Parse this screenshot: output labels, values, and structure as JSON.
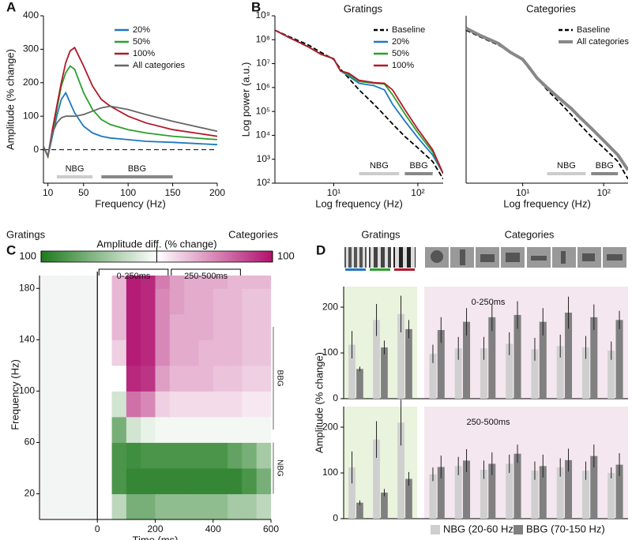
{
  "chart_data": [
    {
      "type": "line",
      "panel": "A",
      "xlabel": "Frequency (Hz)",
      "ylabel": "Amplitude (% change)",
      "x": [
        5,
        10,
        15,
        20,
        25,
        30,
        35,
        40,
        50,
        60,
        70,
        80,
        100,
        120,
        150,
        200
      ],
      "xlim": [
        5,
        200
      ],
      "xticks": [
        10,
        50,
        100,
        150,
        200
      ],
      "ylim": [
        -100,
        400
      ],
      "yticks": [
        0,
        100,
        200,
        300,
        400
      ],
      "reference_line": 0,
      "legend_position": "upper right",
      "series": [
        {
          "name": "20%",
          "color": "#1f78c1",
          "values": [
            10,
            -20,
            40,
            100,
            150,
            170,
            140,
            110,
            70,
            50,
            40,
            35,
            30,
            25,
            22,
            15
          ]
        },
        {
          "name": "50%",
          "color": "#2ca02c",
          "values": [
            10,
            -20,
            50,
            120,
            190,
            230,
            250,
            240,
            170,
            120,
            90,
            75,
            60,
            50,
            40,
            30
          ]
        },
        {
          "name": "100%",
          "color": "#b2182b",
          "values": [
            10,
            -20,
            60,
            130,
            200,
            260,
            295,
            305,
            250,
            190,
            150,
            130,
            100,
            80,
            60,
            40
          ]
        },
        {
          "name": "All categories",
          "color": "#666666",
          "values": [
            10,
            -20,
            50,
            80,
            95,
            100,
            100,
            100,
            105,
            115,
            125,
            130,
            120,
            105,
            85,
            55
          ]
        }
      ],
      "bands": [
        {
          "label": "NBG",
          "range": [
            20,
            60
          ],
          "color": "#cccccc"
        },
        {
          "label": "BBG",
          "range": [
            70,
            150
          ],
          "color": "#888888"
        }
      ]
    },
    {
      "type": "line",
      "panel": "B",
      "title": "Gratings",
      "xlabel": "Log frequency (Hz)",
      "ylabel": "Log power (a.u.)",
      "xlog": true,
      "ylog": true,
      "x": [
        2,
        3,
        5,
        7,
        10,
        12,
        15,
        20,
        30,
        40,
        50,
        70,
        100,
        150,
        200
      ],
      "xlim": [
        2,
        200
      ],
      "xticks": [
        {
          "value": 10,
          "label": "10¹"
        },
        {
          "value": 100,
          "label": "10²"
        }
      ],
      "ylim": [
        100,
        1000000000
      ],
      "yticks": [
        {
          "value": 100,
          "label": "10²"
        },
        {
          "value": 1000,
          "label": "10³"
        },
        {
          "value": 10000,
          "label": "10⁴"
        },
        {
          "value": 100000,
          "label": "10⁵"
        },
        {
          "value": 1000000,
          "label": "10⁶"
        },
        {
          "value": 10000000,
          "label": "10⁷"
        },
        {
          "value": 100000000,
          "label": "10⁸"
        },
        {
          "value": 1000000000,
          "label": "10⁹"
        }
      ],
      "legend_position": "upper right",
      "series": [
        {
          "name": "Baseline",
          "color": "#000000",
          "dash": true,
          "values": [
            250000000,
            130000000,
            60000000,
            30000000,
            15000000,
            6000000,
            2500000,
            800000,
            200000,
            70000,
            30000,
            9000,
            3000,
            800,
            150
          ]
        },
        {
          "name": "20%",
          "color": "#1f78c1",
          "values": [
            250000000,
            120000000,
            50000000,
            25000000,
            16000000,
            5000000,
            3000000,
            1500000,
            1200000,
            800000,
            200000,
            40000,
            8000,
            1500,
            250
          ]
        },
        {
          "name": "50%",
          "color": "#2ca02c",
          "values": [
            250000000,
            120000000,
            50000000,
            25000000,
            16000000,
            5000000,
            3500000,
            1800000,
            1500000,
            1400000,
            500000,
            80000,
            13000,
            2000,
            250
          ]
        },
        {
          "name": "100%",
          "color": "#b2182b",
          "values": [
            250000000,
            120000000,
            50000000,
            25000000,
            16000000,
            5000000,
            4000000,
            2000000,
            1600000,
            1500000,
            800000,
            120000,
            18000,
            2500,
            250
          ]
        }
      ],
      "bands": [
        {
          "label": "NBG",
          "range": [
            20,
            60
          ],
          "color": "#cccccc"
        },
        {
          "label": "BBG",
          "range": [
            70,
            150
          ],
          "color": "#888888"
        }
      ]
    },
    {
      "type": "line",
      "title": "Categories",
      "xlabel": "Log frequency (Hz)",
      "xlog": true,
      "ylog": true,
      "x": [
        2,
        3,
        5,
        7,
        10,
        12,
        15,
        20,
        30,
        40,
        50,
        70,
        100,
        150,
        200
      ],
      "xlim": [
        2,
        200
      ],
      "xticks": [
        {
          "value": 10,
          "label": "10¹"
        },
        {
          "value": 100,
          "label": "10²"
        }
      ],
      "ylim": [
        100,
        1000000000
      ],
      "legend_position": "upper right",
      "series": [
        {
          "name": "Baseline",
          "color": "#000000",
          "dash": true,
          "values": [
            250000000,
            130000000,
            60000000,
            30000000,
            15000000,
            6000000,
            2500000,
            800000,
            200000,
            70000,
            30000,
            9000,
            3000,
            800,
            150
          ]
        },
        {
          "name": "All categories",
          "color": "#888888",
          "width": 4,
          "values": [
            300000000,
            150000000,
            70000000,
            30000000,
            15000000,
            7000000,
            2500000,
            1000000,
            300000,
            130000,
            60000,
            20000,
            6000,
            1500,
            350
          ]
        }
      ],
      "bands": [
        {
          "label": "NBG",
          "range": [
            20,
            60
          ],
          "color": "#cccccc"
        },
        {
          "label": "BBG",
          "range": [
            70,
            150
          ],
          "color": "#888888"
        }
      ]
    },
    {
      "type": "heatmap",
      "panel": "C",
      "xlabel": "Time (ms)",
      "ylabel": "Frequency (Hz)",
      "colorbar_label": "Amplitude diff. (% change)",
      "colorbar_ends": [
        "Gratings",
        "Categories"
      ],
      "colorbar_lim": [
        -100,
        100
      ],
      "colorbar_ticks": [
        {
          "value": -100,
          "label": "100"
        },
        {
          "value": 100,
          "label": "100"
        }
      ],
      "colors": [
        "#1e7a1e",
        "#ffffff",
        "#b0106e"
      ],
      "xlim": [
        -200,
        600
      ],
      "xticks": [
        0,
        200,
        400,
        600
      ],
      "ylim": [
        0,
        190
      ],
      "yticks": [
        20,
        60,
        100,
        140,
        180
      ],
      "x": [
        0,
        50,
        100,
        150,
        200,
        250,
        300,
        350,
        400,
        450,
        500,
        550
      ],
      "y": [
        10,
        30,
        50,
        70,
        90,
        110,
        130,
        150,
        170,
        190
      ],
      "values": [
        [
          0,
          -30,
          -60,
          -60,
          -50,
          -50,
          -50,
          -50,
          -50,
          -40,
          -40,
          -30
        ],
        [
          0,
          -80,
          -90,
          -90,
          -90,
          -90,
          -90,
          -90,
          -90,
          -90,
          -80,
          -60
        ],
        [
          0,
          -80,
          -85,
          -80,
          -80,
          -80,
          -80,
          -80,
          -80,
          -70,
          -60,
          -40
        ],
        [
          0,
          -60,
          -20,
          -10,
          -5,
          -5,
          -5,
          -5,
          -5,
          -5,
          -5,
          -5
        ],
        [
          0,
          -20,
          60,
          50,
          20,
          15,
          15,
          15,
          15,
          15,
          10,
          10
        ],
        [
          0,
          0,
          90,
          85,
          40,
          30,
          30,
          30,
          25,
          25,
          20,
          20
        ],
        [
          0,
          20,
          95,
          90,
          50,
          35,
          35,
          30,
          30,
          30,
          25,
          25
        ],
        [
          0,
          30,
          95,
          90,
          50,
          35,
          35,
          35,
          30,
          30,
          25,
          25
        ],
        [
          0,
          30,
          95,
          90,
          50,
          40,
          35,
          35,
          30,
          30,
          25,
          25
        ],
        [
          0,
          30,
          95,
          90,
          55,
          40,
          35,
          35,
          35,
          30,
          30,
          30
        ]
      ],
      "windows": [
        {
          "label": "0-250ms",
          "range": [
            0,
            250
          ]
        },
        {
          "label": "250-500ms",
          "range": [
            250,
            500
          ]
        }
      ],
      "bands": [
        {
          "label": "NBG",
          "range": [
            20,
            60
          ]
        },
        {
          "label": "BBG",
          "range": [
            70,
            150
          ]
        }
      ]
    },
    {
      "type": "bar",
      "panel": "D",
      "ylabel": "Amplitude (% change)",
      "group_labels": [
        "Gratings",
        "Categories"
      ],
      "categories": [
        null,
        null,
        null,
        null,
        null,
        null,
        null,
        null,
        null,
        null,
        null
      ],
      "ylim": [
        0,
        245
      ],
      "yticks": [
        0,
        100,
        200
      ],
      "legend": [
        {
          "name": "NBG (20-60 Hz)",
          "color": "#cfcfcf"
        },
        {
          "name": "BBG (70-150 Hz)",
          "color": "#808080"
        }
      ],
      "panels": [
        {
          "title": "0-250ms",
          "series": [
            {
              "values": [
                118,
                172,
                185,
                98,
                110,
                110,
                120,
                108,
                115,
                112,
                105
              ],
              "errors": [
                30,
                35,
                40,
                20,
                25,
                25,
                25,
                25,
                25,
                25,
                20
              ]
            },
            {
              "values": [
                65,
                112,
                152,
                150,
                168,
                178,
                183,
                168,
                188,
                178,
                172
              ],
              "errors": [
                5,
                15,
                20,
                28,
                30,
                30,
                30,
                30,
                35,
                28,
                20
              ]
            }
          ]
        },
        {
          "title": "250-500ms",
          "series": [
            {
              "values": [
                112,
                173,
                210,
                97,
                115,
                107,
                120,
                105,
                112,
                105,
                100
              ],
              "errors": [
                35,
                40,
                50,
                15,
                20,
                20,
                20,
                20,
                20,
                20,
                12
              ]
            },
            {
              "values": [
                35,
                57,
                87,
                113,
                127,
                120,
                142,
                115,
                128,
                137,
                118
              ],
              "errors": [
                5,
                8,
                15,
                25,
                25,
                25,
                20,
                25,
                25,
                25,
                25
              ]
            }
          ]
        }
      ]
    }
  ]
}
